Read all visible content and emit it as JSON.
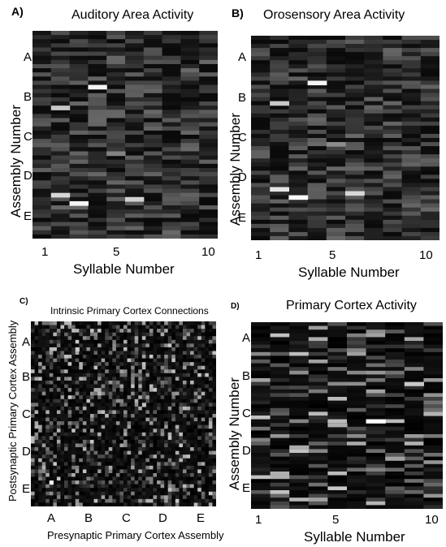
{
  "chart_data": [
    {
      "panel": "A)",
      "type": "heatmap",
      "title": "Auditory Area Activity",
      "xlabel": "Syllable Number",
      "ylabel": "Assembly Number",
      "x_ticks": [
        "1",
        "5",
        "10"
      ],
      "y_ticks": [
        "A",
        "B",
        "C",
        "D",
        "E"
      ],
      "xlim": [
        1,
        10
      ],
      "colormap": "gray",
      "grid": false
    },
    {
      "panel": "B)",
      "type": "heatmap",
      "title": "Orosensory Area Activity",
      "xlabel": "Syllable Number",
      "ylabel": "Assembly Number",
      "x_ticks": [
        "1",
        "5",
        "10"
      ],
      "y_ticks": [
        "A",
        "B",
        "C",
        "D",
        "E"
      ],
      "xlim": [
        1,
        10
      ],
      "colormap": "gray",
      "grid": false
    },
    {
      "panel": "C)",
      "type": "heatmap",
      "title": "Intrinsic Primary Cortex Connections",
      "xlabel": "Presynaptic Primary Cortex Assembly",
      "ylabel": "Postsynaptic Primary Cortex Assembly",
      "x_ticks": [
        "A",
        "B",
        "C",
        "D",
        "E"
      ],
      "y_ticks": [
        "A",
        "B",
        "C",
        "D",
        "E"
      ],
      "colormap": "gray",
      "grid": false
    },
    {
      "panel": "D)",
      "type": "heatmap",
      "title": "Primary Cortex Activity",
      "xlabel": "Syllable Number",
      "ylabel": "Assembly Number",
      "x_ticks": [
        "1",
        "5",
        "10"
      ],
      "y_ticks": [
        "A",
        "B",
        "C",
        "D",
        "E"
      ],
      "xlim": [
        1,
        10
      ],
      "colormap": "gray",
      "grid": false
    }
  ]
}
